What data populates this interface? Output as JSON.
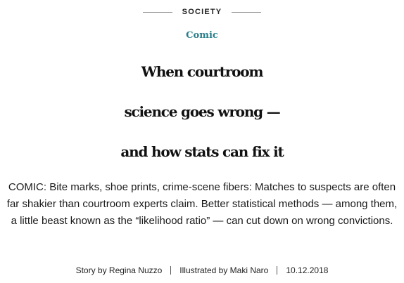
{
  "section": {
    "label": "SOCIETY"
  },
  "category": "Comic",
  "headline": {
    "line1": "When courtroom",
    "line2": "science goes wrong —",
    "line3": "and how stats can fix it"
  },
  "dek": "COMIC: Bite marks, shoe prints, crime-scene fibers: Matches to suspects are often far shakier than courtroom experts claim. Better statistical methods — among them, a little beast known as the “likelihood ratio” — can cut down on wrong convictions.",
  "byline": {
    "story_prefix": "Story by",
    "story_author": "Regina Nuzzo",
    "illustrated_prefix": "Illustrated by",
    "illustrator": "Maki Naro",
    "date": "10.12.2018"
  }
}
